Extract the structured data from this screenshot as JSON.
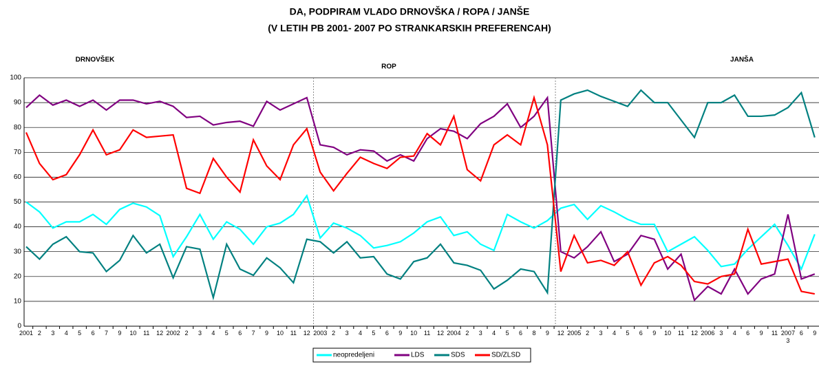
{
  "chart_data": {
    "type": "line",
    "title": "DA, PODPIRAM VLADO DRNOVŠKA / ROPA / JANŠE",
    "subtitle": "(V LETIH PB 2001- 2007 PO STRANKARSKIH PREFERENCAH)",
    "annotations": [
      "DRNOVŠEK",
      "ROP",
      "JANŠA"
    ],
    "categories": [
      "2001",
      "2",
      "3",
      "4",
      "5",
      "6",
      "7",
      "9",
      "10",
      "11",
      "12",
      "2002",
      "2",
      "3",
      "4",
      "5",
      "6",
      "7",
      "9",
      "10",
      "11",
      "12",
      "2003",
      "2",
      "3",
      "4",
      "5",
      "6",
      "9",
      "10",
      "11",
      "12",
      "2004",
      "2",
      "3",
      "4",
      "5",
      "6",
      "8",
      "9",
      "12",
      "2005",
      "2",
      "3",
      "4",
      "5",
      "6",
      "9",
      "10",
      "11",
      "12",
      "2006",
      "3",
      "4",
      "6",
      "9",
      "11",
      "2007\n3",
      "6",
      "9"
    ],
    "series": [
      {
        "name": "neopredeljeni",
        "color": "#00ffff",
        "values": [
          50,
          46,
          39.5,
          42,
          42,
          45,
          41,
          47,
          49.5,
          48,
          44.5,
          28,
          36,
          45,
          35,
          42,
          39,
          33,
          40,
          41.5,
          45,
          52.5,
          35.5,
          41.5,
          39.5,
          36.5,
          31.5,
          32.5,
          34,
          37.5,
          42,
          44,
          36.5,
          38,
          33,
          30.5,
          45,
          42,
          39.5,
          42.5,
          47.5,
          49,
          43,
          48.5,
          46,
          43,
          41,
          41,
          30,
          33,
          36,
          30.5,
          24,
          25,
          31,
          36,
          41,
          32.5,
          23,
          37
        ]
      },
      {
        "name": "LDS",
        "color": "#800080",
        "values": [
          88,
          93,
          89,
          91,
          88.5,
          91,
          87,
          91,
          91,
          89.5,
          90.5,
          88.5,
          84,
          84.5,
          81,
          82,
          82.5,
          80.5,
          90.5,
          87,
          89.5,
          92,
          73,
          72,
          69,
          71,
          70.5,
          66.5,
          69,
          66.5,
          75.5,
          79.5,
          78.5,
          75.5,
          81.5,
          84.5,
          89.5,
          80,
          84.5,
          92,
          30,
          27.5,
          32,
          38,
          26,
          29,
          36.5,
          35,
          23,
          29,
          10.5,
          16,
          13,
          23,
          13,
          19,
          21,
          45,
          19,
          21
        ]
      },
      {
        "name": "SDS",
        "color": "#008080",
        "values": [
          32,
          27,
          33,
          36,
          30,
          29.5,
          22,
          26.5,
          36.5,
          29.5,
          33,
          19.5,
          32,
          31,
          11.5,
          33,
          23,
          20.5,
          27.5,
          23.5,
          17.5,
          35,
          34,
          29.5,
          34,
          27.5,
          28,
          21,
          19,
          26,
          27.5,
          33,
          25.5,
          24.5,
          22.5,
          15,
          18.5,
          23,
          22,
          13.5,
          91,
          93.5,
          95,
          92.5,
          90.5,
          88.5,
          95,
          90,
          90,
          83,
          76,
          90,
          90,
          93,
          84.5,
          84.5,
          85,
          88,
          94,
          76
        ]
      },
      {
        "name": "SD/ZLSD",
        "color": "#ff0000",
        "values": [
          78,
          65.5,
          59,
          61,
          69,
          79,
          69,
          71,
          79,
          76,
          76.5,
          77,
          55.5,
          53.5,
          67.5,
          60,
          54,
          75,
          64.5,
          59,
          73,
          79.5,
          62,
          54.5,
          61.5,
          68,
          65.5,
          63.5,
          68,
          68.5,
          77.5,
          73,
          84.5,
          63,
          58.5,
          73,
          77,
          73,
          92,
          73,
          22,
          36.5,
          25.5,
          26.5,
          24.5,
          30,
          16.5,
          25.5,
          28,
          24.5,
          18,
          17,
          20,
          21,
          39,
          25,
          26,
          27,
          14,
          13
        ]
      }
    ],
    "ylim": [
      0,
      100
    ],
    "yticks": [
      0,
      10,
      20,
      30,
      40,
      50,
      60,
      70,
      80,
      90,
      100
    ],
    "grid": true,
    "legend": "bottom"
  }
}
